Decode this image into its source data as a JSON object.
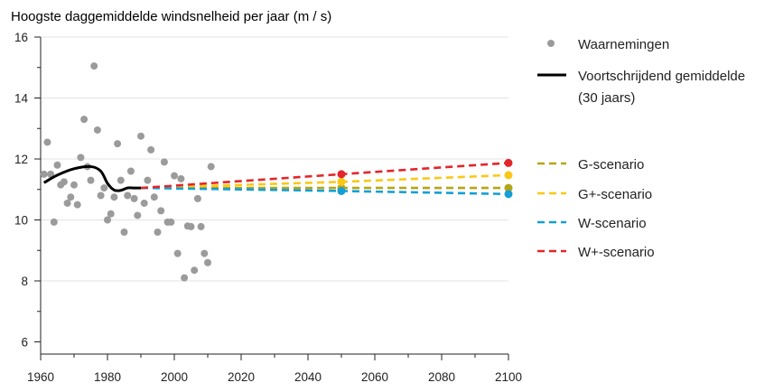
{
  "chart_data": {
    "type": "scatter",
    "title": "Hoogste daggemiddelde windsnelheid per jaar (m / s)",
    "xlabel": "",
    "ylabel": "",
    "xlim": [
      1960,
      2100
    ],
    "ylim": [
      5.6,
      16
    ],
    "xticks": [
      1960,
      1980,
      2000,
      2020,
      2040,
      2060,
      2080,
      2100
    ],
    "yticks": [
      6,
      8,
      10,
      12,
      14,
      16
    ],
    "grid": true,
    "legend": "right",
    "observations": {
      "name": "Waarnemingen",
      "color": "#9b9b9b",
      "points": [
        [
          1961,
          11.5
        ],
        [
          1962,
          12.55
        ],
        [
          1963,
          11.5
        ],
        [
          1964,
          9.93
        ],
        [
          1965,
          11.8
        ],
        [
          1966,
          11.15
        ],
        [
          1967,
          11.25
        ],
        [
          1968,
          10.55
        ],
        [
          1969,
          10.75
        ],
        [
          1970,
          11.15
        ],
        [
          1971,
          10.5
        ],
        [
          1972,
          12.05
        ],
        [
          1973,
          13.3
        ],
        [
          1974,
          11.75
        ],
        [
          1975,
          11.3
        ],
        [
          1976,
          15.05
        ],
        [
          1977,
          12.95
        ],
        [
          1978,
          10.8
        ],
        [
          1979,
          11.05
        ],
        [
          1980,
          10.0
        ],
        [
          1981,
          10.2
        ],
        [
          1982,
          10.75
        ],
        [
          1983,
          12.5
        ],
        [
          1984,
          11.3
        ],
        [
          1985,
          9.6
        ],
        [
          1986,
          10.8
        ],
        [
          1987,
          11.6
        ],
        [
          1988,
          10.7
        ],
        [
          1989,
          10.15
        ],
        [
          1990,
          12.75
        ],
        [
          1991,
          10.55
        ],
        [
          1992,
          11.3
        ],
        [
          1993,
          12.3
        ],
        [
          1994,
          10.75
        ],
        [
          1995,
          9.6
        ],
        [
          1996,
          10.3
        ],
        [
          1997,
          11.9
        ],
        [
          1998,
          9.93
        ],
        [
          1999,
          9.93
        ],
        [
          2000,
          11.45
        ],
        [
          2001,
          8.9
        ],
        [
          2002,
          11.35
        ],
        [
          2003,
          8.1
        ],
        [
          2004,
          9.8
        ],
        [
          2005,
          9.78
        ],
        [
          2006,
          8.35
        ],
        [
          2007,
          10.7
        ],
        [
          2008,
          9.78
        ],
        [
          2009,
          8.9
        ],
        [
          2010,
          8.6
        ],
        [
          2011,
          11.75
        ]
      ]
    },
    "running_mean": {
      "name": "Voortschrijdend gemiddelde",
      "name_line2": "(30 jaars)",
      "color": "#000000",
      "x": [
        1961,
        1965,
        1970,
        1975,
        1978,
        1980,
        1982,
        1984,
        1986,
        1988,
        1990
      ],
      "y": [
        11.22,
        11.47,
        11.68,
        11.75,
        11.6,
        11.2,
        10.98,
        10.97,
        11.05,
        11.05,
        11.05
      ]
    },
    "series": [
      {
        "name": "G-scenario",
        "color": "#b5a514",
        "x": [
          1990,
          2050,
          2100
        ],
        "y": [
          11.05,
          11.05,
          11.05
        ],
        "dot": [
          2050,
          2100
        ]
      },
      {
        "name": "G+-scenario",
        "color": "#f9c817",
        "x": [
          1990,
          2050,
          2100
        ],
        "y": [
          11.05,
          11.25,
          11.47
        ],
        "dot": [
          2050,
          2100
        ]
      },
      {
        "name": "W-scenario",
        "color": "#139fd6",
        "x": [
          1990,
          2050,
          2100
        ],
        "y": [
          11.05,
          10.95,
          10.85
        ],
        "dot": [
          2050,
          2100
        ]
      },
      {
        "name": "W+-scenario",
        "color": "#e3262b",
        "x": [
          1990,
          2050,
          2100
        ],
        "y": [
          11.05,
          11.5,
          11.87
        ],
        "dot": [
          2050,
          2100
        ]
      }
    ]
  }
}
